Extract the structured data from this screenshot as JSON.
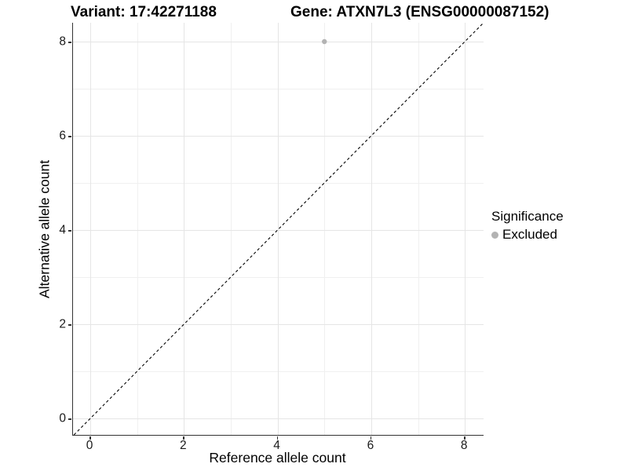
{
  "titles": {
    "variant": "Variant: 17:42271188",
    "gene": "Gene: ATXN7L3 (ENSG00000087152)"
  },
  "chart_data": {
    "type": "scatter",
    "title": "Variant: 17:42271188   Gene: ATXN7L3 (ENSG00000087152)",
    "xlabel": "Reference allele count",
    "ylabel": "Alternative allele count",
    "xlim": [
      -0.37,
      8.4
    ],
    "ylim": [
      -0.35,
      8.4
    ],
    "xticks": [
      0,
      2,
      4,
      6,
      8
    ],
    "yticks": [
      0,
      2,
      4,
      6,
      8
    ],
    "xminor": [
      1,
      3,
      5,
      7
    ],
    "yminor": [
      1,
      3,
      5,
      7
    ],
    "grid": "major and minor gridlines, no panel border, axis lines left+bottom",
    "reference_line": {
      "type": "identity y=x",
      "style": "dashed",
      "color": "#000000"
    },
    "series": [
      {
        "name": "Excluded",
        "color": "#b3b3b3",
        "points": [
          {
            "x": 5,
            "y": 8
          }
        ]
      }
    ],
    "legend": {
      "title": "Significance",
      "position": "right",
      "entries": [
        {
          "label": "Excluded",
          "color": "#b3b3b3"
        }
      ]
    }
  },
  "colors": {
    "background": "#ffffff",
    "grid_major": "#e5e5e5",
    "grid_minor": "#f0f0f0",
    "axis_line": "#333333",
    "dashed_line": "#000000",
    "point": "#b3b3b3",
    "text": "#000000"
  }
}
